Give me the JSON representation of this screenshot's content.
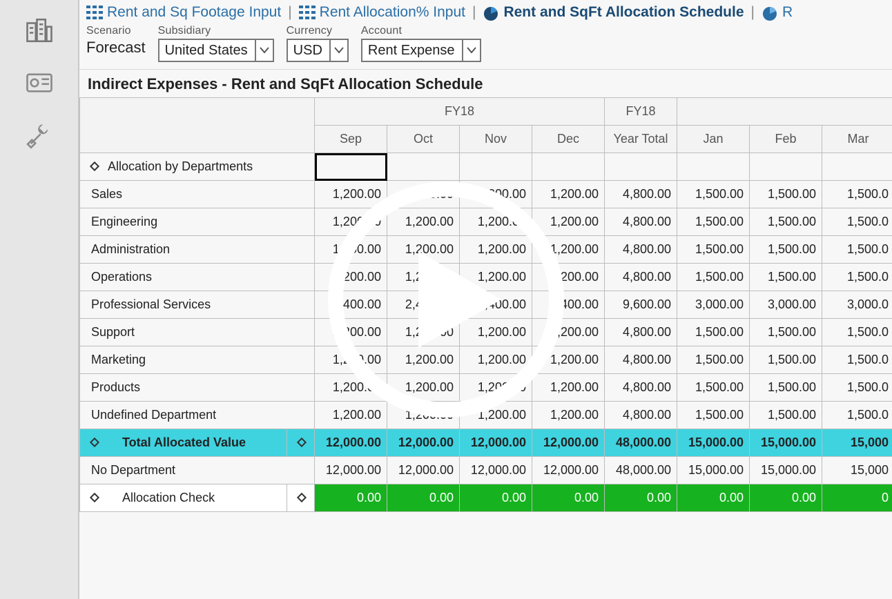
{
  "tabs": [
    {
      "label": "Rent and Sq Footage Input",
      "active": false
    },
    {
      "label": "Rent Allocation% Input",
      "active": false
    },
    {
      "label": "Rent and SqFt Allocation Schedule",
      "active": true
    },
    {
      "label": "R",
      "active": false
    }
  ],
  "filters": {
    "scenario": {
      "label": "Scenario",
      "value": "Forecast"
    },
    "subsidiary": {
      "label": "Subsidiary",
      "value": "United States"
    },
    "currency": {
      "label": "Currency",
      "value": "USD"
    },
    "account": {
      "label": "Account",
      "value": "Rent Expense"
    }
  },
  "section_title": "Indirect Expenses - Rent and SqFt Allocation Schedule",
  "columns": {
    "group1": "FY18",
    "group2": "FY18",
    "months": [
      "Sep",
      "Oct",
      "Nov",
      "Dec",
      "Year Total",
      "Jan",
      "Feb",
      "Mar"
    ]
  },
  "rows": {
    "section_header": "Allocation by Departments",
    "departments": [
      {
        "name": "Sales",
        "vals": [
          "1,200.00",
          "1,200.00",
          "1,200.00",
          "1,200.00",
          "4,800.00",
          "1,500.00",
          "1,500.00",
          "1,500.0"
        ]
      },
      {
        "name": "Engineering",
        "vals": [
          "1,200.00",
          "1,200.00",
          "1,200.00",
          "1,200.00",
          "4,800.00",
          "1,500.00",
          "1,500.00",
          "1,500.0"
        ]
      },
      {
        "name": "Administration",
        "vals": [
          "1,200.00",
          "1,200.00",
          "1,200.00",
          "1,200.00",
          "4,800.00",
          "1,500.00",
          "1,500.00",
          "1,500.0"
        ]
      },
      {
        "name": "Operations",
        "vals": [
          "1,200.00",
          "1,200.00",
          "1,200.00",
          "1,200.00",
          "4,800.00",
          "1,500.00",
          "1,500.00",
          "1,500.0"
        ]
      },
      {
        "name": "Professional Services",
        "vals": [
          "2,400.00",
          "2,400.00",
          "2,400.00",
          "2,400.00",
          "9,600.00",
          "3,000.00",
          "3,000.00",
          "3,000.0"
        ]
      },
      {
        "name": "Support",
        "vals": [
          "1,200.00",
          "1,200.00",
          "1,200.00",
          "1,200.00",
          "4,800.00",
          "1,500.00",
          "1,500.00",
          "1,500.0"
        ]
      },
      {
        "name": "Marketing",
        "vals": [
          "1,200.00",
          "1,200.00",
          "1,200.00",
          "1,200.00",
          "4,800.00",
          "1,500.00",
          "1,500.00",
          "1,500.0"
        ]
      },
      {
        "name": "Products",
        "vals": [
          "1,200.00",
          "1,200.00",
          "1,200.00",
          "1,200.00",
          "4,800.00",
          "1,500.00",
          "1,500.00",
          "1,500.0"
        ]
      },
      {
        "name": "Undefined Department",
        "vals": [
          "1,200.00",
          "1,200.00",
          "1,200.00",
          "1,200.00",
          "4,800.00",
          "1,500.00",
          "1,500.00",
          "1,500.0"
        ]
      }
    ],
    "total": {
      "name": "Total Allocated Value",
      "vals": [
        "12,000.00",
        "12,000.00",
        "12,000.00",
        "12,000.00",
        "48,000.00",
        "15,000.00",
        "15,000.00",
        "15,000"
      ]
    },
    "no_department": {
      "name": "No Department",
      "vals": [
        "12,000.00",
        "12,000.00",
        "12,000.00",
        "12,000.00",
        "48,000.00",
        "15,000.00",
        "15,000.00",
        "15,000"
      ]
    },
    "check": {
      "name": "Allocation Check",
      "vals": [
        "0.00",
        "0.00",
        "0.00",
        "0.00",
        "0.00",
        "0.00",
        "0.00",
        "0"
      ]
    }
  },
  "colors": {
    "tab_link": "#2a6ea6",
    "tab_active": "#1b4a73",
    "total_row_bg": "#3fd3e0",
    "check_row_bg": "#17b21f",
    "grid_border": "#bdbdbd",
    "play_overlay": "#ffffff"
  }
}
